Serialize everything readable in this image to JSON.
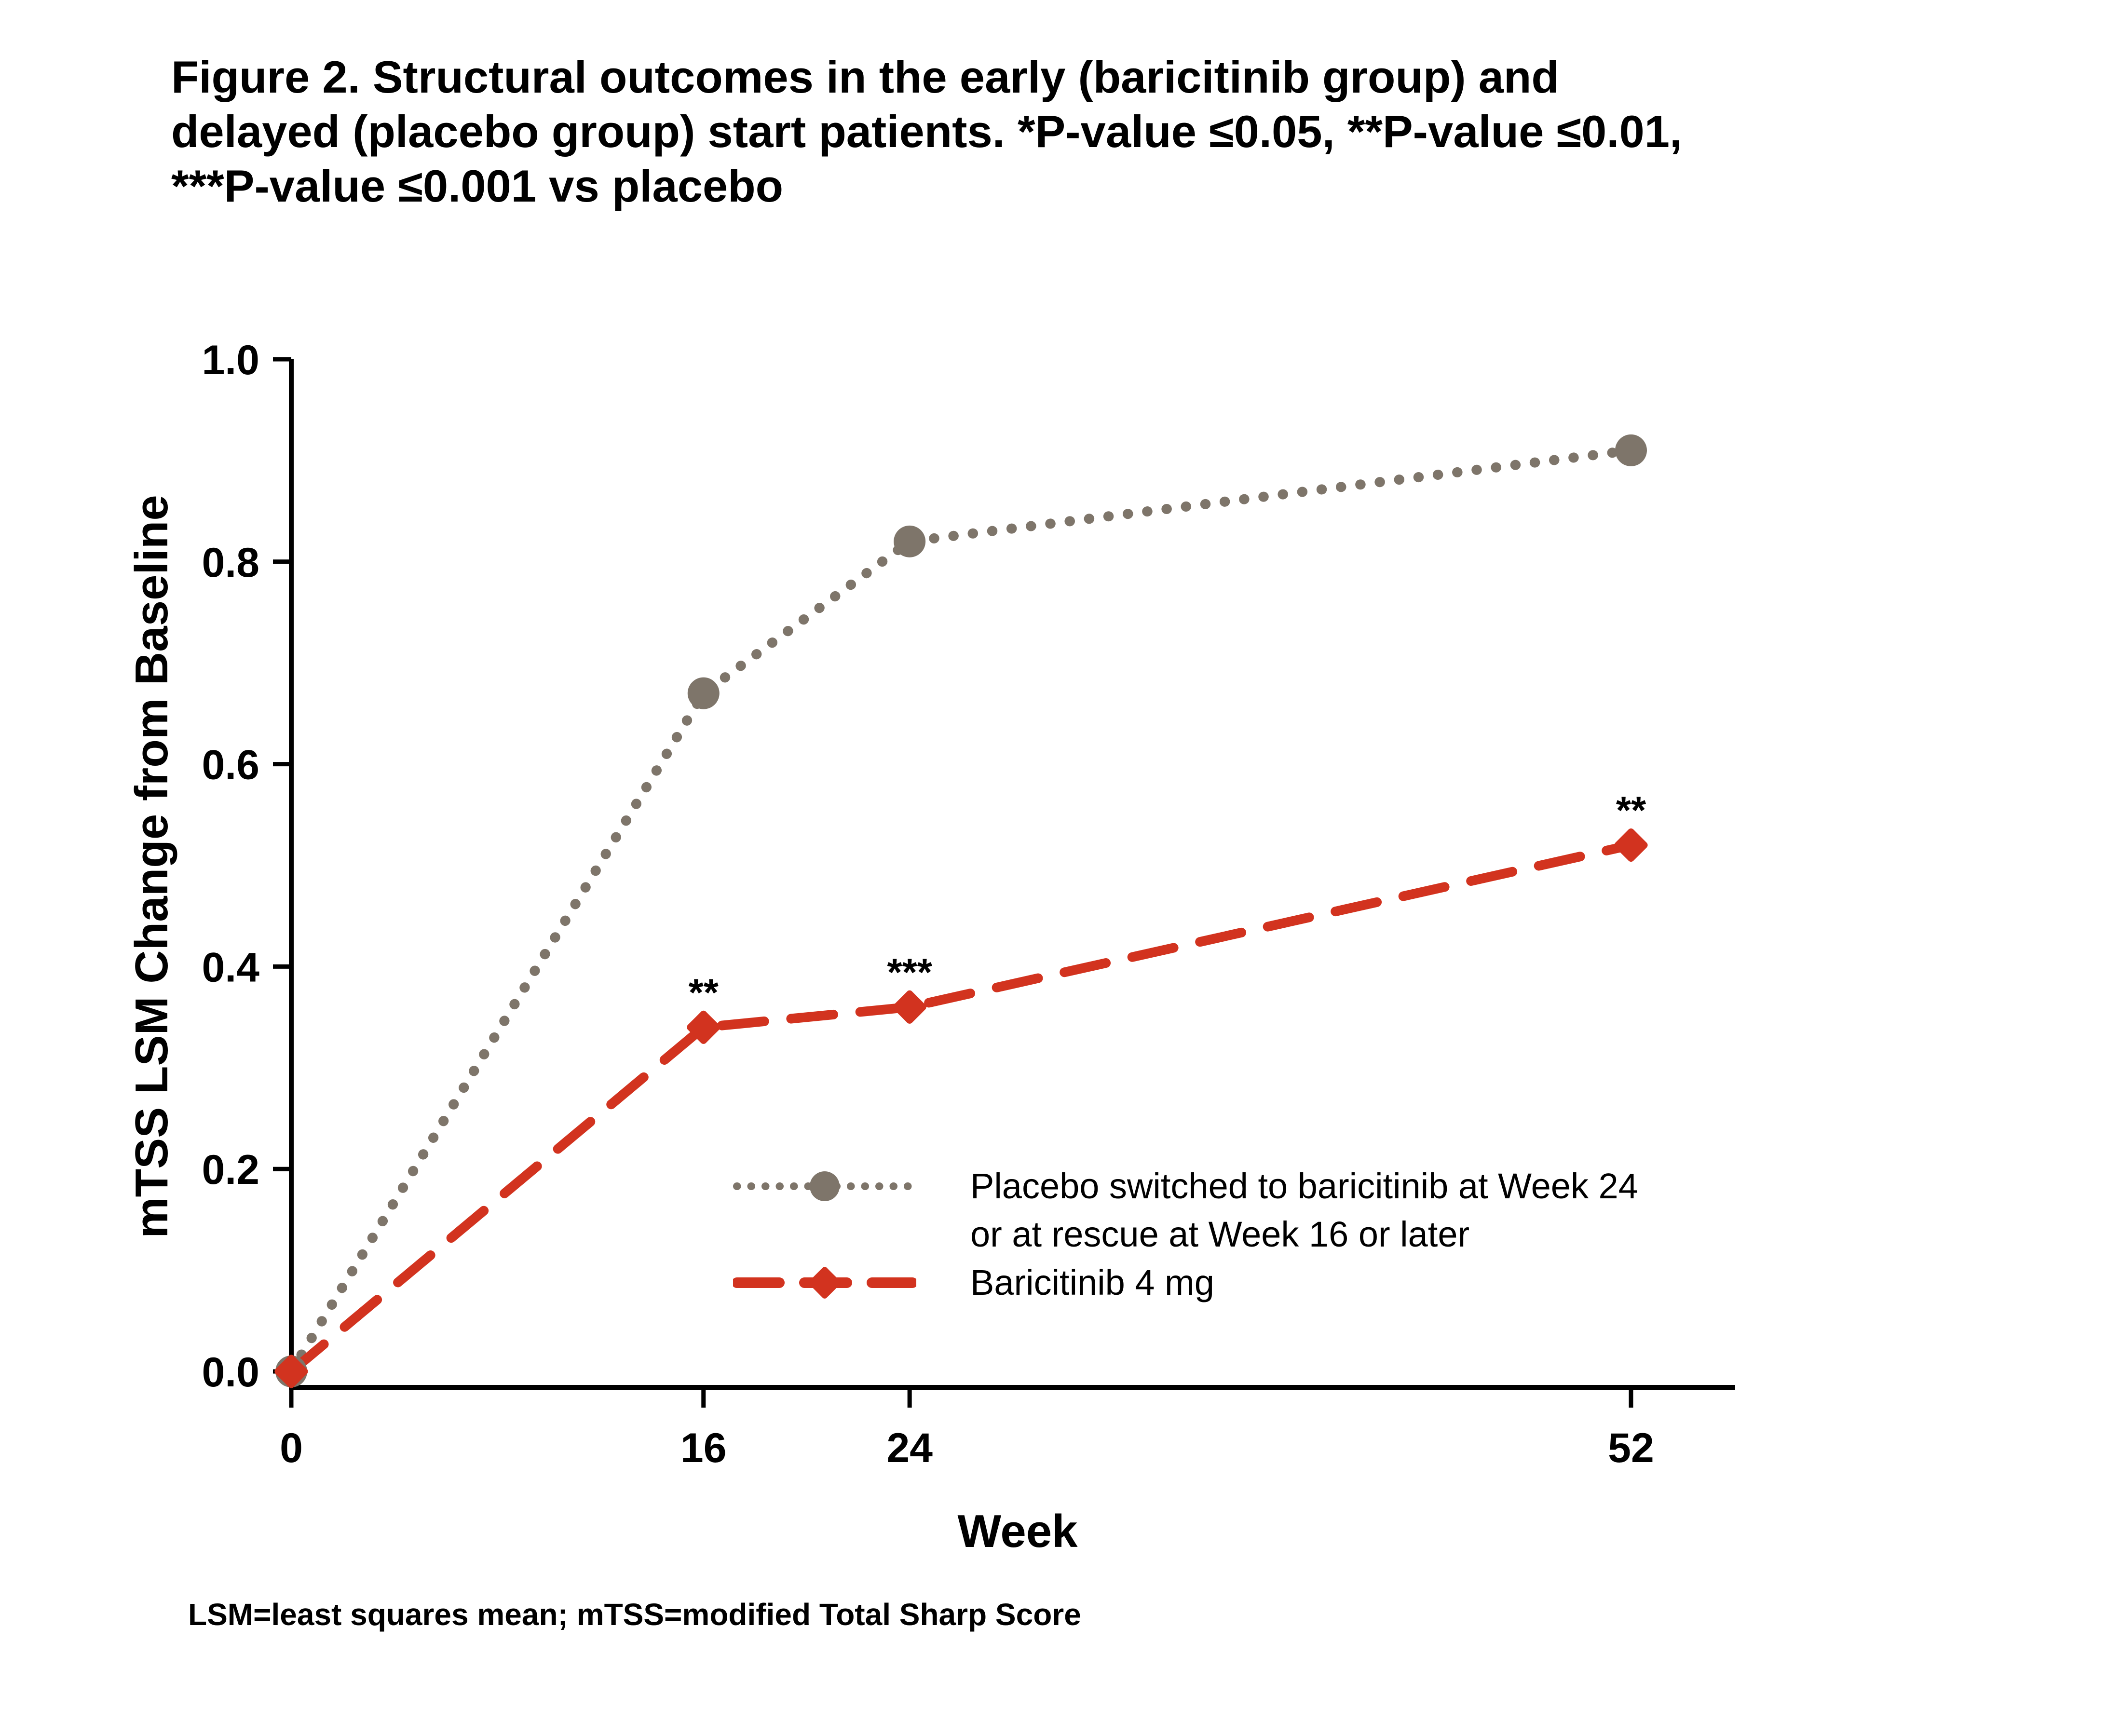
{
  "title": {
    "lines": [
      "Figure 2. Structural outcomes in the early (baricitinib group) and",
      "delayed (placebo group) start patients. *P-value ≤0.05, **P-value ≤0.01,",
      "***P-value ≤0.001 vs placebo"
    ]
  },
  "chart_data": {
    "type": "line",
    "x": [
      0,
      16,
      24,
      52
    ],
    "xlabel": "Week",
    "ylabel": "mTSS LSM Change from Baseline",
    "xticks": [
      "0",
      "16",
      "24",
      "52"
    ],
    "yticks": [
      "0.0",
      "0.2",
      "0.4",
      "0.6",
      "0.8",
      "1.0"
    ],
    "xlim": [
      0,
      56
    ],
    "ylim": [
      0,
      1.0
    ],
    "grid": false,
    "legend_position": "inside-bottom-center",
    "series": [
      {
        "name": "Placebo switched to baricitinib at Week 24 or at rescue at Week 16 or later",
        "color": "#7e756a",
        "marker": "circle",
        "linestyle": "dotted",
        "values": [
          0.0,
          0.67,
          0.82,
          0.91
        ]
      },
      {
        "name": "Baricitinib 4 mg",
        "color": "#d2331f",
        "marker": "diamond",
        "linestyle": "dashed",
        "values": [
          0.0,
          0.34,
          0.36,
          0.52
        ]
      }
    ],
    "annotations": [
      {
        "week": 16,
        "series": "Baricitinib 4 mg",
        "text": "**"
      },
      {
        "week": 24,
        "series": "Baricitinib 4 mg",
        "text": "***"
      },
      {
        "week": 52,
        "series": "Baricitinib 4 mg",
        "text": "**"
      }
    ]
  },
  "legend": {
    "items": [
      {
        "line1": "Placebo switched to baricitinib at Week 24",
        "line2": "or at rescue at Week 16 or later"
      },
      {
        "line1": "Baricitinib 4 mg",
        "line2": ""
      }
    ]
  },
  "footnote": {
    "text": "LSM=least squares mean; mTSS=modified Total Sharp Score"
  },
  "colors": {
    "placebo": "#7e756a",
    "baricitinib": "#d2331f",
    "axis": "#000000",
    "background": "#ffffff"
  }
}
